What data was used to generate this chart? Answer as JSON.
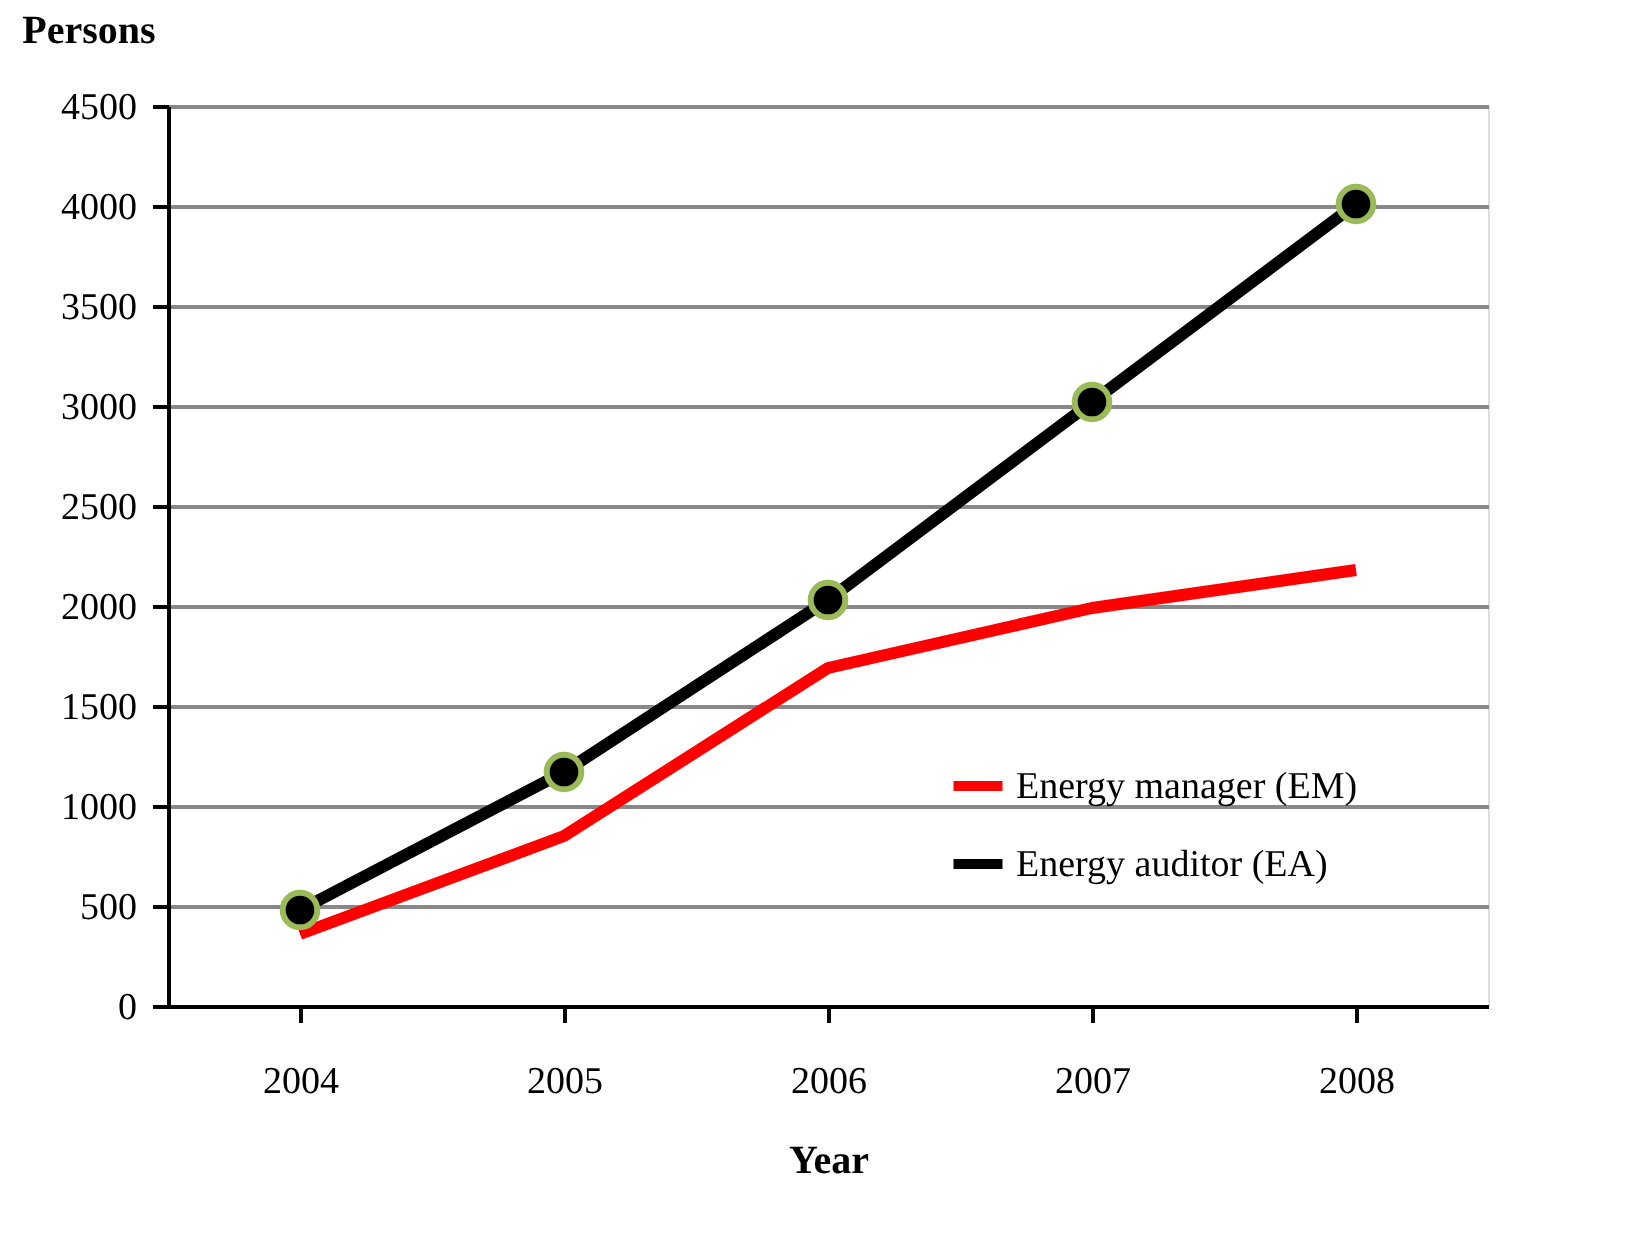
{
  "chart_data": {
    "type": "line",
    "xlabel": "Year",
    "ylabel": "Persons",
    "categories": [
      "2004",
      "2005",
      "2006",
      "2007",
      "2008"
    ],
    "series": [
      {
        "name": "Energy manager (EM)",
        "color": "#ff0000",
        "marker": "none",
        "values": [
          360,
          850,
          1690,
          1990,
          2180
        ]
      },
      {
        "name": "Energy auditor (EA)",
        "color": "#000000",
        "marker": "circle",
        "values": [
          480,
          1170,
          2030,
          3020,
          4010
        ]
      }
    ],
    "ylim": [
      0,
      4500
    ],
    "yticks": [
      0,
      500,
      1000,
      1500,
      2000,
      2500,
      3000,
      3500,
      4000,
      4500
    ],
    "grid": "y",
    "legend": "right",
    "line_style": "solid"
  }
}
